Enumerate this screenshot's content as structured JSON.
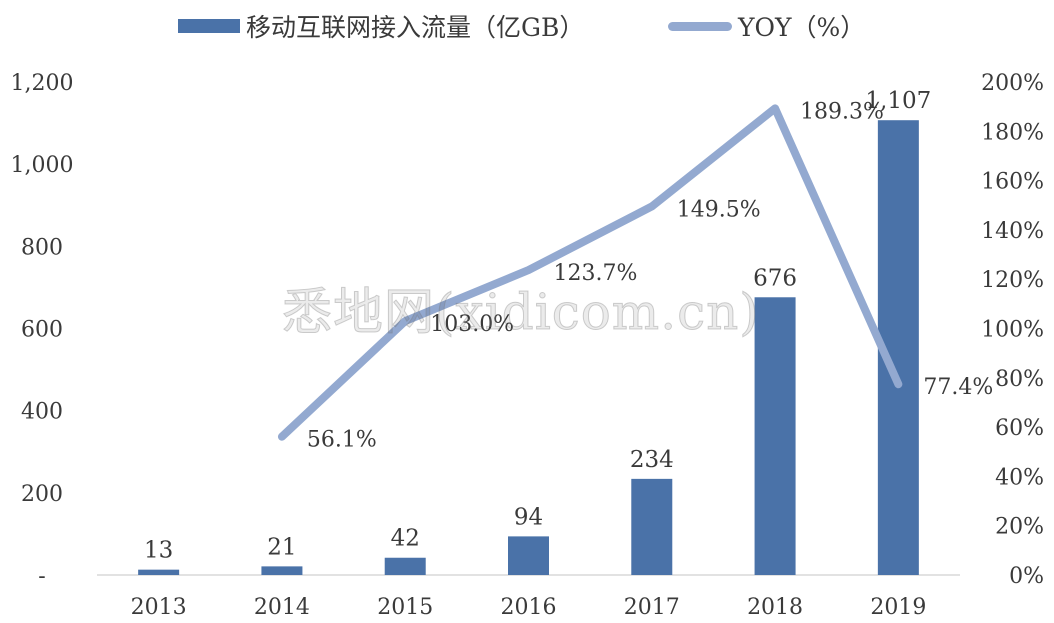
{
  "legend": {
    "bar_label": "移动互联网接入流量（亿GB）",
    "line_label": "YOY（%）"
  },
  "watermark": "悉地网(xidicom.cn)",
  "colors": {
    "bar": "#4a72a8",
    "line": "#93a9d0",
    "text": "#3a3a3a",
    "axis": "#d9d9d9"
  },
  "chart_data": {
    "type": "bar",
    "categories": [
      "2013",
      "2014",
      "2015",
      "2016",
      "2017",
      "2018",
      "2019"
    ],
    "series": [
      {
        "name": "移动互联网接入流量（亿GB）",
        "type": "bar",
        "axis": "left",
        "values": [
          13,
          21,
          42,
          94,
          234,
          676,
          1107
        ],
        "labels": [
          "13",
          "21",
          "42",
          "94",
          "234",
          "676",
          "1,107"
        ]
      },
      {
        "name": "YOY（%）",
        "type": "line",
        "axis": "right",
        "values": [
          null,
          56.1,
          103.0,
          123.7,
          149.5,
          189.3,
          77.4
        ],
        "labels": [
          null,
          "56.1%",
          "103.0%",
          "123.7%",
          "149.5%",
          "189.3%",
          "77.4%"
        ]
      }
    ],
    "y_left": {
      "ylim": [
        0,
        1200
      ],
      "ticks": [
        0,
        200,
        400,
        600,
        800,
        1000,
        1200
      ],
      "tick_labels": [
        "-",
        "200",
        "400",
        "600",
        "800",
        "1,000",
        "1,200"
      ]
    },
    "y_right": {
      "ylim": [
        0,
        200
      ],
      "ticks": [
        0,
        20,
        40,
        60,
        80,
        100,
        120,
        140,
        160,
        180,
        200
      ],
      "tick_labels": [
        "0%",
        "20%",
        "40%",
        "60%",
        "80%",
        "100%",
        "120%",
        "140%",
        "160%",
        "180%",
        "200%"
      ]
    },
    "grid": false,
    "legend_position": "top"
  }
}
